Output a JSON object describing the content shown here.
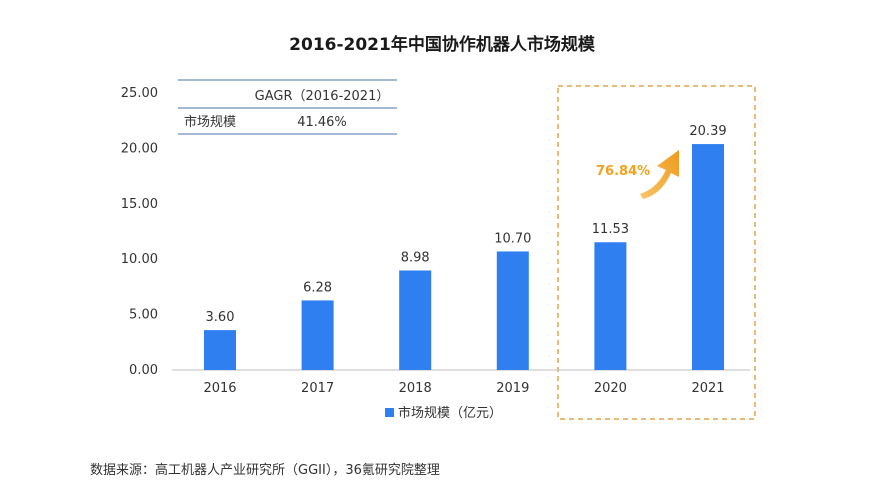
{
  "chart_data": {
    "type": "bar",
    "title": "2016-2021年中国协作机器人市场规模",
    "categories": [
      "2016",
      "2017",
      "2018",
      "2019",
      "2020",
      "2021"
    ],
    "series": [
      {
        "name": "市场规模（亿元）",
        "values": [
          3.6,
          6.28,
          8.98,
          10.7,
          11.53,
          20.39
        ]
      }
    ],
    "value_labels": [
      "3.60",
      "6.28",
      "8.98",
      "10.70",
      "11.53",
      "20.39"
    ],
    "y_ticks": [
      "0.00",
      "5.00",
      "10.00",
      "15.00",
      "20.00",
      "25.00"
    ],
    "ylim": [
      0,
      25
    ],
    "grid": false,
    "legend_position": "bottom",
    "bar_color": "#2f7ff0",
    "highlight": {
      "categories": [
        "2020",
        "2021"
      ],
      "growth_label": "76.84%",
      "growth_color": "#f2a11e",
      "box_color": "#e3a44a"
    },
    "inset_table": {
      "header": "GAGR（2016-2021）",
      "row_label": "市场规模",
      "row_value": "41.46%"
    }
  },
  "source": "数据来源：高工机器人产业研究所（GGII），36氪研究院整理"
}
